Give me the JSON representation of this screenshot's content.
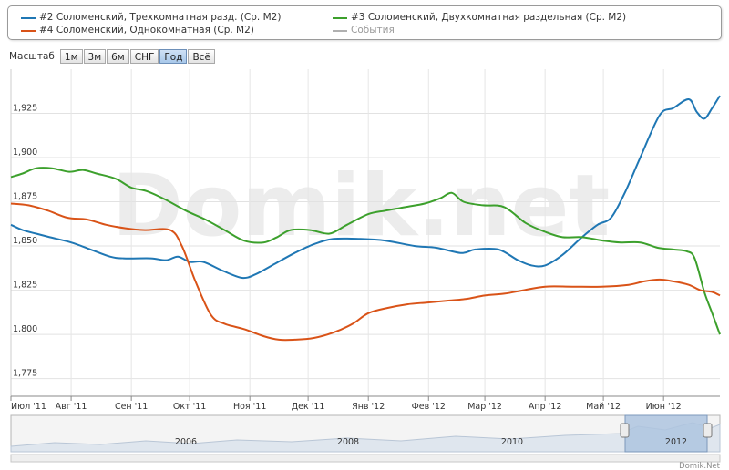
{
  "legend": {
    "items": [
      {
        "label": "#2 Соломенский, Трехкомнатная разд. (Ср. М2)",
        "color": "#1f77b4"
      },
      {
        "label": "#3 Соломенский, Двухкомнатная раздельная (Ср. М2)",
        "color": "#3ca02c"
      },
      {
        "label": "#4 Соломенский, Однокомнатная (Ср. М2)",
        "color": "#d95318"
      },
      {
        "label": "События",
        "color": "#b0b0b0"
      }
    ]
  },
  "zoom": {
    "label": "Масштаб",
    "buttons": [
      "1м",
      "3м",
      "6м",
      "СНГ",
      "Год",
      "Всё"
    ],
    "active": "Год"
  },
  "watermark": "Domik.net",
  "credit": "Domik.Net",
  "navigator": {
    "years": [
      "2006",
      "2008",
      "2010",
      "2012"
    ],
    "selected": "2012"
  },
  "chart_data": {
    "type": "line",
    "title": "",
    "xlabel": "",
    "ylabel": "",
    "x_ticks": [
      "Июл '11",
      "Авг '11",
      "Сен '11",
      "Окт '11",
      "Ноя '11",
      "Дек '11",
      "Янв '12",
      "Фев '12",
      "Мар '12",
      "Апр '12",
      "Май '12",
      "Июн '12"
    ],
    "y_ticks": [
      "1,775",
      "1,800",
      "1,825",
      "1,850",
      "1,875",
      "1,900",
      "1,925"
    ],
    "xlim": [
      "2011-07-01",
      "2012-06-30"
    ],
    "ylim": [
      1765,
      1950
    ],
    "grid": true,
    "legend_position": "top",
    "series": [
      {
        "name": "#2 Соломенский, Трехкомнатная разд. (Ср. М2)",
        "color": "#1f77b4",
        "points": [
          [
            "2011-07-01",
            1862
          ],
          [
            "2011-07-07",
            1859
          ],
          [
            "2011-07-14",
            1857
          ],
          [
            "2011-07-21",
            1855
          ],
          [
            "2011-08-01",
            1852
          ],
          [
            "2011-08-11",
            1848
          ],
          [
            "2011-08-21",
            1844
          ],
          [
            "2011-08-28",
            1843
          ],
          [
            "2011-09-11",
            1843
          ],
          [
            "2011-09-19",
            1842
          ],
          [
            "2011-09-25",
            1844
          ],
          [
            "2011-10-01",
            1841
          ],
          [
            "2011-10-08",
            1841
          ],
          [
            "2011-10-18",
            1836
          ],
          [
            "2011-10-28",
            1832
          ],
          [
            "2011-11-04",
            1834
          ],
          [
            "2011-11-14",
            1840
          ],
          [
            "2011-11-24",
            1846
          ],
          [
            "2011-12-04",
            1851
          ],
          [
            "2011-12-14",
            1854
          ],
          [
            "2011-12-28",
            1854
          ],
          [
            "2012-01-10",
            1853
          ],
          [
            "2012-01-25",
            1850
          ],
          [
            "2012-02-05",
            1849
          ],
          [
            "2012-02-18",
            1846
          ],
          [
            "2012-02-25",
            1848
          ],
          [
            "2012-03-08",
            1848
          ],
          [
            "2012-03-18",
            1842
          ],
          [
            "2012-03-25",
            1839
          ],
          [
            "2012-04-01",
            1839
          ],
          [
            "2012-04-10",
            1845
          ],
          [
            "2012-04-20",
            1855
          ],
          [
            "2012-04-28",
            1862
          ],
          [
            "2012-05-05",
            1866
          ],
          [
            "2012-05-12",
            1880
          ],
          [
            "2012-05-20",
            1900
          ],
          [
            "2012-05-30",
            1924
          ],
          [
            "2012-06-06",
            1928
          ],
          [
            "2012-06-14",
            1933
          ],
          [
            "2012-06-18",
            1926
          ],
          [
            "2012-06-22",
            1922
          ],
          [
            "2012-06-26",
            1928
          ],
          [
            "2012-06-30",
            1935
          ]
        ]
      },
      {
        "name": "#3 Соломенский, Двухкомнатная раздельная (Ср. М2)",
        "color": "#3ca02c",
        "points": [
          [
            "2011-07-01",
            1889
          ],
          [
            "2011-07-07",
            1891
          ],
          [
            "2011-07-14",
            1894
          ],
          [
            "2011-07-22",
            1894
          ],
          [
            "2011-07-31",
            1892
          ],
          [
            "2011-08-07",
            1893
          ],
          [
            "2011-08-14",
            1891
          ],
          [
            "2011-08-24",
            1888
          ],
          [
            "2011-09-01",
            1883
          ],
          [
            "2011-09-09",
            1881
          ],
          [
            "2011-09-19",
            1876
          ],
          [
            "2011-09-29",
            1870
          ],
          [
            "2011-10-09",
            1865
          ],
          [
            "2011-10-19",
            1859
          ],
          [
            "2011-10-29",
            1853
          ],
          [
            "2011-11-08",
            1852
          ],
          [
            "2011-11-15",
            1855
          ],
          [
            "2011-11-22",
            1859
          ],
          [
            "2011-12-02",
            1859
          ],
          [
            "2011-12-12",
            1857
          ],
          [
            "2011-12-21",
            1862
          ],
          [
            "2012-01-01",
            1868
          ],
          [
            "2012-01-10",
            1870
          ],
          [
            "2012-01-20",
            1872
          ],
          [
            "2012-01-30",
            1874
          ],
          [
            "2012-02-07",
            1877
          ],
          [
            "2012-02-13",
            1880
          ],
          [
            "2012-02-19",
            1875
          ],
          [
            "2012-02-29",
            1873
          ],
          [
            "2012-03-11",
            1872
          ],
          [
            "2012-03-22",
            1863
          ],
          [
            "2012-04-01",
            1858
          ],
          [
            "2012-04-10",
            1855
          ],
          [
            "2012-04-20",
            1855
          ],
          [
            "2012-05-01",
            1853
          ],
          [
            "2012-05-10",
            1852
          ],
          [
            "2012-05-20",
            1852
          ],
          [
            "2012-05-29",
            1849
          ],
          [
            "2012-06-06",
            1848
          ],
          [
            "2012-06-13",
            1847
          ],
          [
            "2012-06-17",
            1843
          ],
          [
            "2012-06-22",
            1824
          ],
          [
            "2012-06-26",
            1812
          ],
          [
            "2012-06-30",
            1800
          ]
        ]
      },
      {
        "name": "#4 Соломенский, Однокомнатная (Ср. М2)",
        "color": "#d95318",
        "points": [
          [
            "2011-07-01",
            1874
          ],
          [
            "2011-07-10",
            1873
          ],
          [
            "2011-07-20",
            1870
          ],
          [
            "2011-07-30",
            1866
          ],
          [
            "2011-08-09",
            1865
          ],
          [
            "2011-08-19",
            1862
          ],
          [
            "2011-08-29",
            1860
          ],
          [
            "2011-09-08",
            1859
          ],
          [
            "2011-09-21",
            1859
          ],
          [
            "2011-09-27",
            1850
          ],
          [
            "2011-10-04",
            1830
          ],
          [
            "2011-10-12",
            1811
          ],
          [
            "2011-10-19",
            1806
          ],
          [
            "2011-10-29",
            1803
          ],
          [
            "2011-11-08",
            1799
          ],
          [
            "2011-11-16",
            1797
          ],
          [
            "2011-11-24",
            1797
          ],
          [
            "2011-12-04",
            1798
          ],
          [
            "2011-12-14",
            1801
          ],
          [
            "2011-12-24",
            1806
          ],
          [
            "2012-01-01",
            1812
          ],
          [
            "2012-01-11",
            1815
          ],
          [
            "2012-01-21",
            1817
          ],
          [
            "2012-01-31",
            1818
          ],
          [
            "2012-02-10",
            1819
          ],
          [
            "2012-02-20",
            1820
          ],
          [
            "2012-03-01",
            1822
          ],
          [
            "2012-03-11",
            1823
          ],
          [
            "2012-03-21",
            1825
          ],
          [
            "2012-04-01",
            1827
          ],
          [
            "2012-04-15",
            1827
          ],
          [
            "2012-04-30",
            1827
          ],
          [
            "2012-05-14",
            1828
          ],
          [
            "2012-05-22",
            1830
          ],
          [
            "2012-05-30",
            1831
          ],
          [
            "2012-06-06",
            1830
          ],
          [
            "2012-06-14",
            1828
          ],
          [
            "2012-06-20",
            1825
          ],
          [
            "2012-06-26",
            1824
          ],
          [
            "2012-06-30",
            1822
          ]
        ]
      }
    ]
  }
}
